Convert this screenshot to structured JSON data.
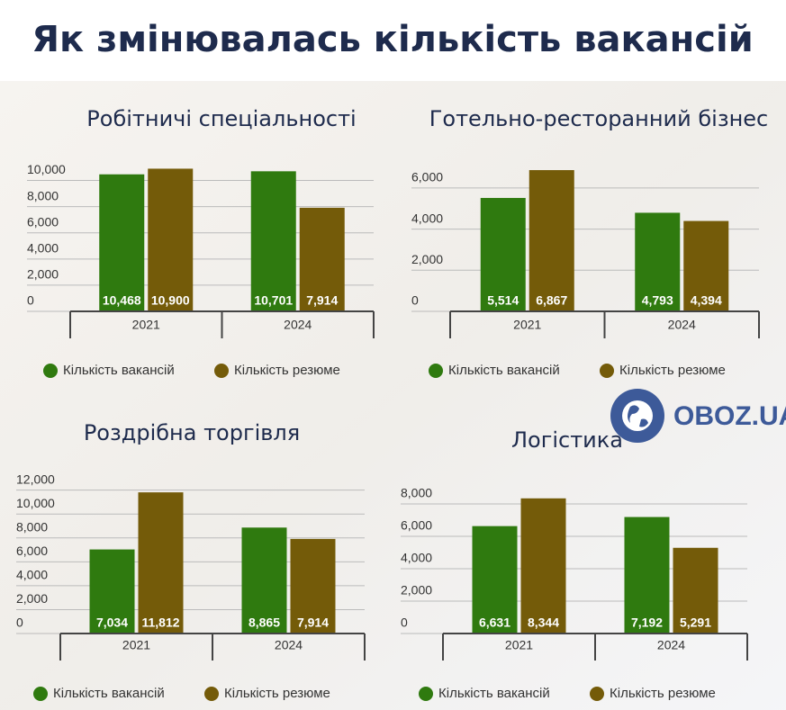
{
  "title": "Як змінювалась кількість вакансій",
  "logo": "OBOZ.UA",
  "chart_data": [
    {
      "type": "bar",
      "title": "Робітничі спеціальності",
      "categories": [
        "2021",
        "2024"
      ],
      "series": [
        {
          "name": "Кількість вакансій",
          "color": "#2f7a0f",
          "values": [
            10468,
            10701
          ],
          "value_labels": [
            "10,468",
            "10,701"
          ]
        },
        {
          "name": "Кількість резюме",
          "color": "#745b09",
          "values": [
            10900,
            7914
          ],
          "value_labels": [
            "10,900",
            "7,914"
          ]
        }
      ],
      "ylim": [
        0,
        11000
      ],
      "yticks": [
        0,
        {
          "value": 2000,
          "label": "2,000"
        },
        {
          "value": 4000,
          "label": "4,000"
        },
        {
          "value": 6000,
          "label": "6,000"
        },
        {
          "value": 8000,
          "label": "8,000"
        },
        {
          "value": 10000,
          "label": "10,000"
        }
      ],
      "grid": true
    },
    {
      "type": "bar",
      "title": "Готельно-ресторанний бізнес",
      "categories": [
        "2021",
        "2024"
      ],
      "series": [
        {
          "name": "Кількість вакансій",
          "color": "#2f7a0f",
          "values": [
            5514,
            4793
          ],
          "value_labels": [
            "5,514",
            "4,793"
          ]
        },
        {
          "name": "Кількість резюме",
          "color": "#745b09",
          "values": [
            6867,
            4394
          ],
          "value_labels": [
            "6,867",
            "4,394"
          ]
        }
      ],
      "ylim": [
        0,
        7000
      ],
      "yticks": [
        0,
        {
          "value": 2000,
          "label": "2,000"
        },
        {
          "value": 4000,
          "label": "4,000"
        },
        {
          "value": 6000,
          "label": "6,000"
        }
      ],
      "grid": true
    },
    {
      "type": "bar",
      "title": "Роздрібна торгівля",
      "categories": [
        "2021",
        "2024"
      ],
      "series": [
        {
          "name": "Кількість вакансій",
          "color": "#2f7a0f",
          "values": [
            7034,
            8865
          ],
          "value_labels": [
            "7,034",
            "8,865"
          ]
        },
        {
          "name": "Кількість резюме",
          "color": "#745b09",
          "values": [
            11812,
            7914
          ],
          "value_labels": [
            "11,812",
            "7,914"
          ]
        }
      ],
      "ylim": [
        0,
        12500
      ],
      "yticks": [
        0,
        {
          "value": 2000,
          "label": "2,000"
        },
        {
          "value": 4000,
          "label": "4,000"
        },
        {
          "value": 6000,
          "label": "6,000"
        },
        {
          "value": 8000,
          "label": "8,000"
        },
        {
          "value": 10000,
          "label": "10,000"
        },
        {
          "value": 12000,
          "label": "12,000"
        }
      ],
      "grid": true
    },
    {
      "type": "bar",
      "title": "Логістика",
      "categories": [
        "2021",
        "2024"
      ],
      "series": [
        {
          "name": "Кількість вакансій",
          "color": "#2f7a0f",
          "values": [
            6631,
            7192
          ],
          "value_labels": [
            "6,631",
            "7,192"
          ]
        },
        {
          "name": "Кількість резюме",
          "color": "#745b09",
          "values": [
            8344,
            5291
          ],
          "value_labels": [
            "8,344",
            "5,291"
          ]
        }
      ],
      "ylim": [
        0,
        8500
      ],
      "yticks": [
        0,
        {
          "value": 2000,
          "label": "2,000"
        },
        {
          "value": 4000,
          "label": "4,000"
        },
        {
          "value": 6000,
          "label": "6,000"
        },
        {
          "value": 8000,
          "label": "8,000"
        }
      ],
      "grid": true
    }
  ]
}
